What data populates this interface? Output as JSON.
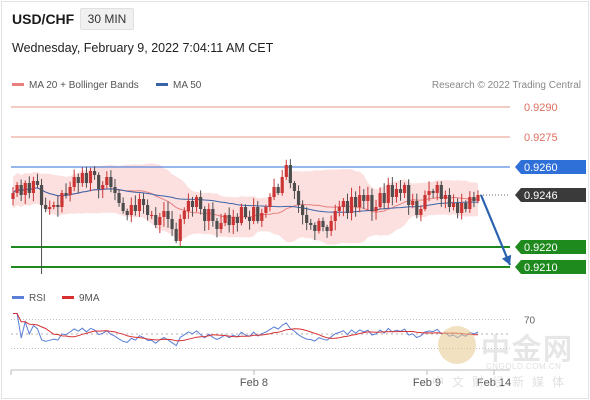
{
  "header": {
    "symbol": "USD/CHF",
    "timeframe": "30 MIN",
    "datetime": "Wednesday, February 9, 2022 7:04:11 AM CET"
  },
  "legend": {
    "ma20_label": "MA 20 + Bollinger Bands",
    "ma50_label": "MA 50",
    "copyright": "Research © 2022 Trading Central",
    "rsi_label": "RSI",
    "rsi_ma_label": "9MA"
  },
  "colors": {
    "ma20": "#e88080",
    "ma50": "#3a64a8",
    "resistance_red": "#e07060",
    "current_line": "#2f6fd8",
    "support_green": "#1e8a1e",
    "bull_candle": "#cc3333",
    "bear_candle": "#4d4d4d",
    "bollinger_fill": "#fbdada",
    "rsi": "#5b7fd6",
    "rsi_ma": "#d83030",
    "arrow": "#2a62b0"
  },
  "watermark": {
    "name": "中金网",
    "url": "CNGOLD.COM.CN",
    "subtitle": "中文财经新媒体"
  },
  "chart_data": [
    {
      "type": "candlestick",
      "title": "USD/CHF",
      "timeframe": "30 MIN",
      "x_ticks": [
        "Feb 8",
        "Feb 9",
        "Feb 14"
      ],
      "ylim": [
        0.9205,
        0.9295
      ],
      "levels": [
        {
          "value": 0.929,
          "label": "0.9290",
          "kind": "resistance"
        },
        {
          "value": 0.9275,
          "label": "0.9275",
          "kind": "resistance"
        },
        {
          "value": 0.926,
          "label": "0.9260",
          "kind": "pivot"
        },
        {
          "value": 0.9246,
          "label": "0.9246",
          "kind": "last"
        },
        {
          "value": 0.922,
          "label": "0.9220",
          "kind": "support"
        },
        {
          "value": 0.921,
          "label": "0.9210",
          "kind": "support"
        }
      ],
      "last_price": 0.9246,
      "projection": {
        "from": 0.9246,
        "to": 0.921,
        "direction": "down"
      },
      "closes": [
        0.9247,
        0.9251,
        0.9246,
        0.9252,
        0.9247,
        0.9253,
        0.9251,
        0.9241,
        0.9239,
        0.924,
        0.9241,
        0.924,
        0.9247,
        0.9246,
        0.925,
        0.9255,
        0.9252,
        0.9257,
        0.9252,
        0.9258,
        0.9256,
        0.9249,
        0.9251,
        0.9255,
        0.925,
        0.9247,
        0.9242,
        0.9238,
        0.9236,
        0.9241,
        0.9238,
        0.9244,
        0.9241,
        0.9236,
        0.9236,
        0.9231,
        0.9235,
        0.9238,
        0.9234,
        0.9229,
        0.9223,
        0.9234,
        0.9238,
        0.9243,
        0.924,
        0.9245,
        0.9239,
        0.9233,
        0.9239,
        0.9233,
        0.9229,
        0.9232,
        0.9236,
        0.9231,
        0.9235,
        0.9232,
        0.924,
        0.9235,
        0.9233,
        0.924,
        0.9233,
        0.9237,
        0.924,
        0.9245,
        0.925,
        0.9247,
        0.9255,
        0.9261,
        0.9252,
        0.9248,
        0.9241,
        0.9236,
        0.9232,
        0.9231,
        0.9228,
        0.9233,
        0.923,
        0.9228,
        0.9233,
        0.9238,
        0.924,
        0.9243,
        0.9237,
        0.9245,
        0.924,
        0.9246,
        0.9243,
        0.9246,
        0.9238,
        0.924,
        0.9247,
        0.9242,
        0.9251,
        0.9245,
        0.9249,
        0.9247,
        0.9251,
        0.9241,
        0.9243,
        0.9236,
        0.9239,
        0.9246,
        0.9248,
        0.9247,
        0.9251,
        0.9244,
        0.9246,
        0.924,
        0.9242,
        0.9237,
        0.9242,
        0.9239,
        0.9245,
        0.9243,
        0.9246
      ]
    },
    {
      "type": "line",
      "title": "RSI",
      "series": [
        {
          "name": "RSI"
        },
        {
          "name": "9MA"
        }
      ],
      "y_ticks": [
        70
      ],
      "ylim": [
        20,
        80
      ]
    }
  ]
}
